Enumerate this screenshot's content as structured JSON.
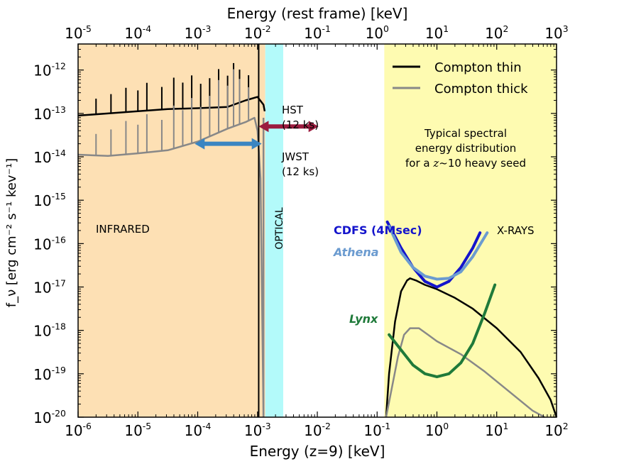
{
  "chart_data": {
    "type": "line",
    "title_top": "Energy (rest frame) [keV]",
    "xlabel": "Energy (z=9) [keV]",
    "ylabel": "f_ν [erg cm⁻² s⁻¹ kev⁻¹]",
    "xscale": "log",
    "yscale": "log",
    "xlim_log10": [
      -6,
      2
    ],
    "ylim_log10": [
      -20,
      -11.4
    ],
    "top_xlim_log10": [
      -5,
      3
    ],
    "bottom_ticks": [
      {
        "base": "10",
        "exp": "-6",
        "v": -6
      },
      {
        "base": "10",
        "exp": "-5",
        "v": -5
      },
      {
        "base": "10",
        "exp": "-4",
        "v": -4
      },
      {
        "base": "10",
        "exp": "-3",
        "v": -3
      },
      {
        "base": "10",
        "exp": "-2",
        "v": -2
      },
      {
        "base": "10",
        "exp": "-1",
        "v": -1
      },
      {
        "base": "10",
        "exp": "0",
        "v": 0
      },
      {
        "base": "10",
        "exp": "1",
        "v": 1
      },
      {
        "base": "10",
        "exp": "2",
        "v": 2
      }
    ],
    "top_ticks": [
      {
        "base": "10",
        "exp": "-5",
        "v": -5
      },
      {
        "base": "10",
        "exp": "-4",
        "v": -4
      },
      {
        "base": "10",
        "exp": "-3",
        "v": -3
      },
      {
        "base": "10",
        "exp": "-2",
        "v": -2
      },
      {
        "base": "10",
        "exp": "-1",
        "v": -1
      },
      {
        "base": "10",
        "exp": "0",
        "v": 0
      },
      {
        "base": "10",
        "exp": "1",
        "v": 1
      },
      {
        "base": "10",
        "exp": "2",
        "v": 2
      },
      {
        "base": "10",
        "exp": "3",
        "v": 3
      }
    ],
    "y_ticks": [
      {
        "base": "10",
        "exp": "-12",
        "v": -12
      },
      {
        "base": "10",
        "exp": "-13",
        "v": -13
      },
      {
        "base": "10",
        "exp": "-14",
        "v": -14
      },
      {
        "base": "10",
        "exp": "-15",
        "v": -15
      },
      {
        "base": "10",
        "exp": "-16",
        "v": -16
      },
      {
        "base": "10",
        "exp": "-17",
        "v": -17
      },
      {
        "base": "10",
        "exp": "-18",
        "v": -18
      },
      {
        "base": "10",
        "exp": "-19",
        "v": -19
      },
      {
        "base": "10",
        "exp": "-20",
        "v": -20
      }
    ],
    "bands": [
      {
        "name": "infrared",
        "label": "INFRARED",
        "x_log10": [
          -6,
          -2.87
        ],
        "color": "#fde0b4"
      },
      {
        "name": "optical",
        "label": "OPTICAL",
        "x_log10": [
          -2.87,
          -2.57
        ],
        "color": "#b3fafa"
      },
      {
        "name": "xrays",
        "label": "X-RAYS",
        "x_log10": [
          -0.88,
          2
        ],
        "color": "#fefbb1"
      }
    ],
    "legend": [
      {
        "name": "Compton thin",
        "color": "#000000"
      },
      {
        "name": "Compton thick",
        "color": "#888888"
      }
    ],
    "annotation": {
      "lines": [
        "Typical spectral",
        "energy distribution",
        "for a z~10 heavy seed"
      ],
      "z_symbol": "z",
      "approx": "~",
      "z_value": "10"
    },
    "arrows": [
      {
        "name": "HST",
        "label": "HST",
        "sublabel": "(12 ks)",
        "color": "#9b1b3f",
        "x_log10": [
          -2.98,
          -1.98
        ],
        "y_log10": -13.3
      },
      {
        "name": "JWST",
        "label": "JWST",
        "sublabel": "(12 ks)",
        "color": "#3a85c2",
        "x_log10": [
          -4.05,
          -2.93
        ],
        "y_log10": -13.7
      }
    ],
    "sensitivity_curves": [
      {
        "name": "CDFS (4Msec)",
        "color": "#1414cc",
        "points": [
          [
            -0.83,
            -15.5
          ],
          [
            -0.6,
            -16.1
          ],
          [
            -0.4,
            -16.55
          ],
          [
            -0.2,
            -16.87
          ],
          [
            0.0,
            -17.0
          ],
          [
            0.2,
            -16.87
          ],
          [
            0.4,
            -16.55
          ],
          [
            0.6,
            -16.1
          ],
          [
            0.72,
            -15.75
          ]
        ]
      },
      {
        "name": "Athena",
        "color": "#6b9bd0",
        "points": [
          [
            -0.8,
            -15.6
          ],
          [
            -0.6,
            -16.2
          ],
          [
            -0.4,
            -16.55
          ],
          [
            -0.2,
            -16.75
          ],
          [
            0.0,
            -16.82
          ],
          [
            0.2,
            -16.8
          ],
          [
            0.4,
            -16.65
          ],
          [
            0.6,
            -16.3
          ],
          [
            0.84,
            -15.75
          ]
        ]
      },
      {
        "name": "Lynx",
        "color": "#1f7a3a",
        "points": [
          [
            -0.8,
            -18.1
          ],
          [
            -0.6,
            -18.45
          ],
          [
            -0.4,
            -18.8
          ],
          [
            -0.2,
            -19.0
          ],
          [
            0.0,
            -19.07
          ],
          [
            0.2,
            -19.0
          ],
          [
            0.4,
            -18.75
          ],
          [
            0.6,
            -18.3
          ],
          [
            0.8,
            -17.6
          ],
          [
            0.97,
            -16.95
          ]
        ]
      }
    ],
    "sensitivity_labels": {
      "cdfs": "CDFS (4Msec)",
      "athena": "Athena",
      "lynx": "Lynx"
    },
    "series": [
      {
        "name": "Compton thin",
        "color": "#000000",
        "points": [
          [
            -6,
            -13.05
          ],
          [
            -5.5,
            -13.0
          ],
          [
            -5.0,
            -12.95
          ],
          [
            -4.5,
            -12.9
          ],
          [
            -4.0,
            -12.88
          ],
          [
            -3.5,
            -12.85
          ],
          [
            -3.2,
            -12.7
          ],
          [
            -3.0,
            -12.62
          ],
          [
            -2.9,
            -12.8
          ],
          [
            -2.88,
            -12.95
          ]
        ]
      },
      {
        "name": "Compton thin",
        "color": "#000000",
        "points": [
          [
            -2.5,
            -20.0
          ],
          [
            -2.5,
            -20.0
          ]
        ]
      },
      {
        "name": "Compton thin",
        "color": "#000000",
        "points": [
          [
            -0.85,
            -20.0
          ],
          [
            -0.8,
            -19.0
          ],
          [
            -0.7,
            -17.8
          ],
          [
            -0.6,
            -17.1
          ],
          [
            -0.5,
            -16.85
          ],
          [
            -0.45,
            -16.8
          ],
          [
            -0.35,
            -16.85
          ],
          [
            -0.2,
            -16.95
          ],
          [
            0.0,
            -17.05
          ],
          [
            0.3,
            -17.25
          ],
          [
            0.6,
            -17.5
          ],
          [
            1.0,
            -17.95
          ],
          [
            1.4,
            -18.5
          ],
          [
            1.7,
            -19.1
          ],
          [
            1.9,
            -19.6
          ],
          [
            2.0,
            -20.0
          ]
        ]
      },
      {
        "name": "Compton thick",
        "color": "#888888",
        "points": [
          [
            -6,
            -13.95
          ],
          [
            -5.5,
            -13.98
          ],
          [
            -5.0,
            -13.92
          ],
          [
            -4.5,
            -13.85
          ],
          [
            -4.0,
            -13.65
          ],
          [
            -3.5,
            -13.35
          ],
          [
            -3.2,
            -13.2
          ],
          [
            -3.05,
            -13.1
          ],
          [
            -3.0,
            -13.4
          ],
          [
            -2.95,
            -14.5
          ],
          [
            -2.9,
            -20.0
          ]
        ]
      },
      {
        "name": "Compton thick",
        "color": "#888888",
        "points": [
          [
            -0.85,
            -20.0
          ],
          [
            -0.75,
            -19.3
          ],
          [
            -0.65,
            -18.6
          ],
          [
            -0.55,
            -18.1
          ],
          [
            -0.45,
            -17.95
          ],
          [
            -0.3,
            -17.95
          ],
          [
            -0.15,
            -18.1
          ],
          [
            0.0,
            -18.25
          ],
          [
            0.4,
            -18.55
          ],
          [
            0.8,
            -18.95
          ],
          [
            1.2,
            -19.4
          ],
          [
            1.6,
            -19.85
          ],
          [
            1.8,
            -20.0
          ]
        ]
      }
    ]
  }
}
